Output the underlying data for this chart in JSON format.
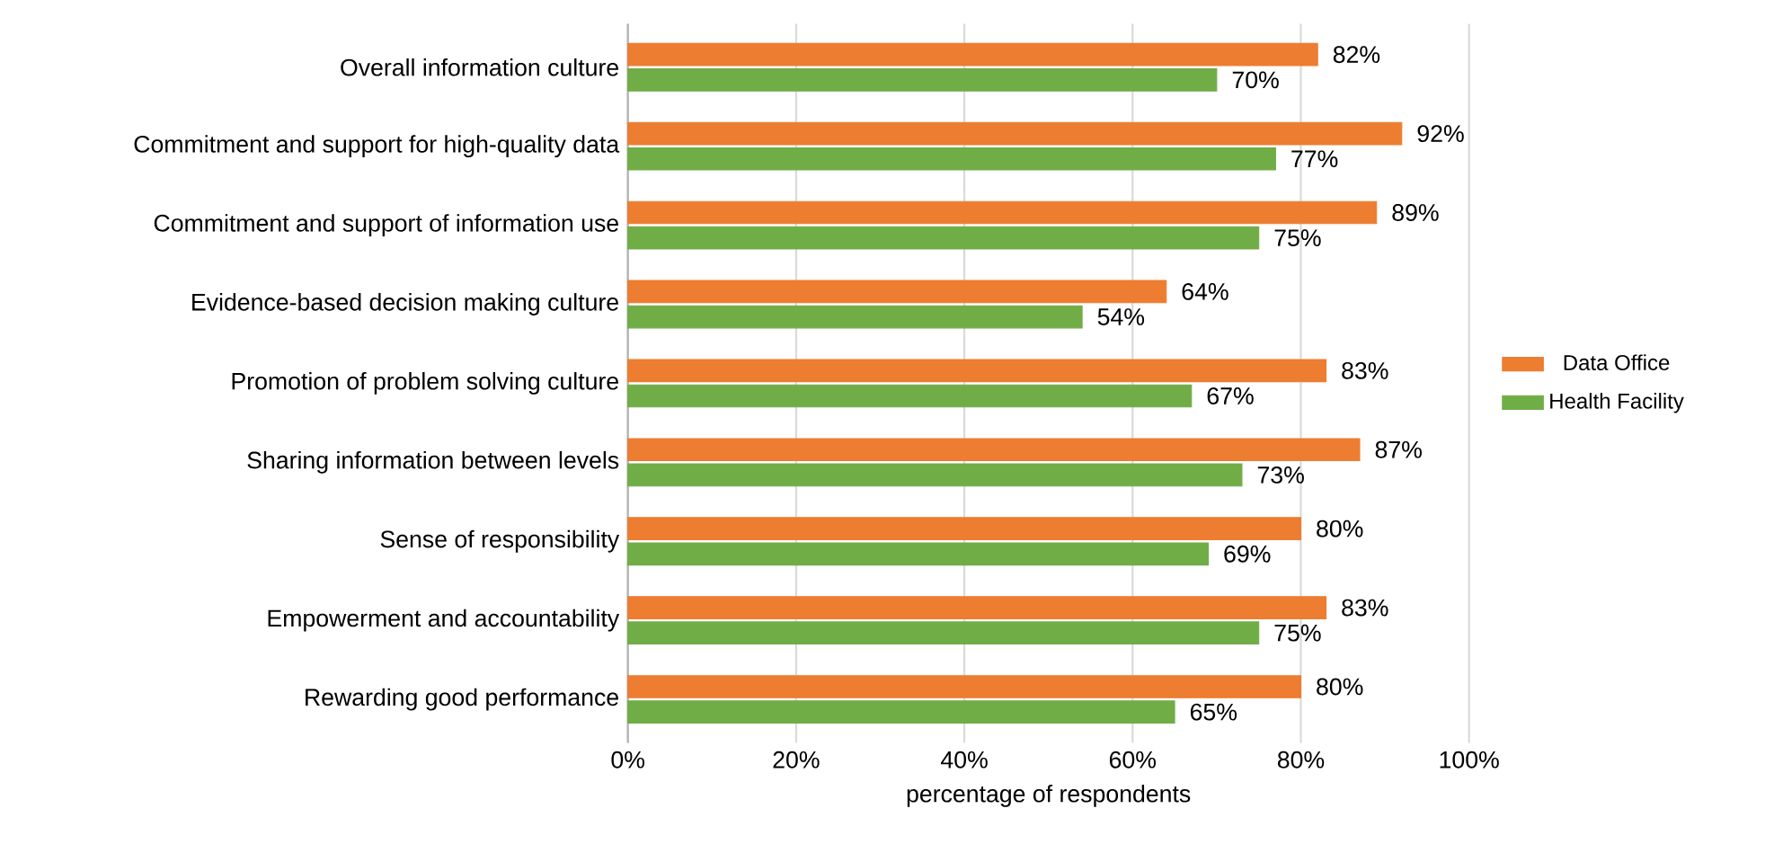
{
  "chart_data": {
    "type": "bar",
    "orientation": "horizontal",
    "xlabel": "percentage of respondents",
    "categories": [
      "Overall information culture",
      "Commitment and support for high-quality data",
      "Commitment and support of information use",
      "Evidence-based decision making culture",
      "Promotion of problem solving culture",
      "Sharing information between levels",
      "Sense of responsibility",
      "Empowerment and accountability",
      "Rewarding good performance"
    ],
    "series": [
      {
        "name": "Data Office",
        "color": "#ed7d31",
        "values": [
          82,
          92,
          89,
          64,
          83,
          87,
          80,
          83,
          80
        ],
        "value_labels": [
          "82%",
          "92%",
          "89%",
          "64%",
          "83%",
          "87%",
          "80%",
          "83%",
          "80%"
        ]
      },
      {
        "name": "Health Facility",
        "color": "#70ad47",
        "values": [
          70,
          77,
          75,
          54,
          67,
          73,
          69,
          75,
          65
        ],
        "value_labels": [
          "70%",
          "77%",
          "75%",
          "54%",
          "67%",
          "73%",
          "69%",
          "75%",
          "65%"
        ]
      }
    ],
    "xlim": [
      0,
      100
    ],
    "xticks": [
      {
        "value": 0,
        "label": "0%"
      },
      {
        "value": 20,
        "label": "20%"
      },
      {
        "value": 40,
        "label": "40%"
      },
      {
        "value": 60,
        "label": "60%"
      },
      {
        "value": 80,
        "label": "80%"
      },
      {
        "value": 100,
        "label": "100%"
      }
    ],
    "grid": "x",
    "legend": "right"
  }
}
